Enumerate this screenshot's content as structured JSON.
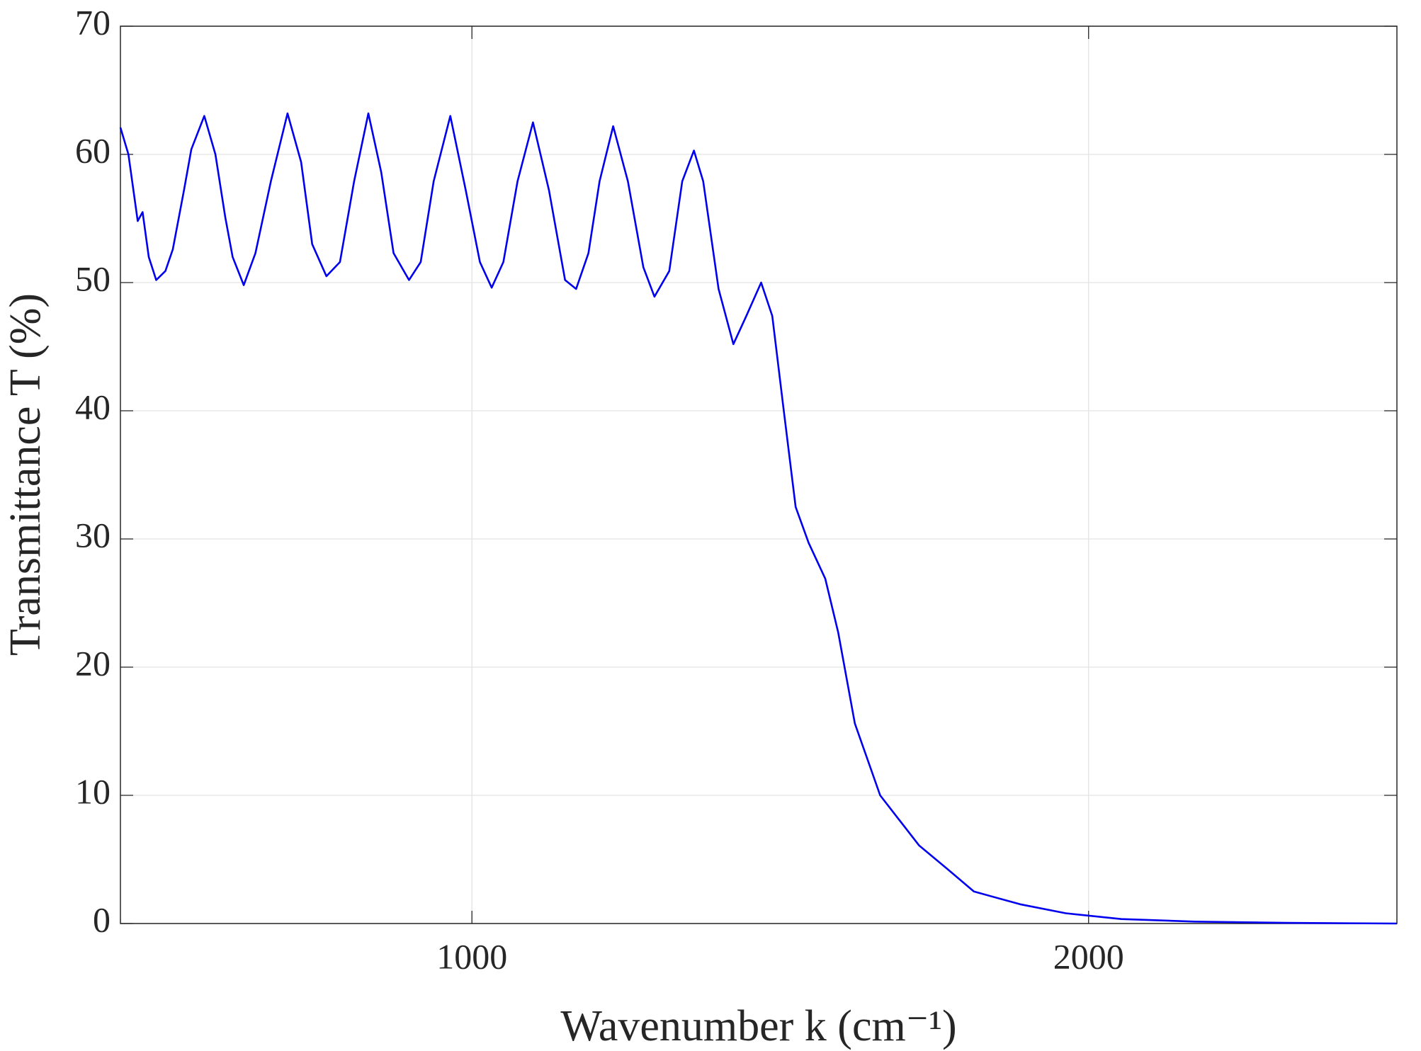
{
  "chart_data": {
    "type": "line",
    "xlabel": "Wavenumber k (cm⁻¹)",
    "ylabel": "Transmittance T (%)",
    "xlim": [
      430,
      2500
    ],
    "ylim": [
      0,
      70
    ],
    "xticks": [
      1000,
      2000
    ],
    "yticks": [
      0,
      10,
      20,
      30,
      40,
      50,
      60,
      70
    ],
    "grid": true,
    "series": [
      {
        "color": "#0000ee",
        "x": [
          430,
          443,
          458,
          466,
          476,
          488,
          503,
          515,
          533,
          545,
          566,
          584,
          600,
          612,
          630,
          649,
          674,
          701,
          723,
          741,
          764,
          786,
          809,
          832,
          853,
          873,
          898,
          917,
          938,
          965,
          990,
          1013,
          1032,
          1051,
          1074,
          1099,
          1125,
          1151,
          1169,
          1189,
          1207,
          1229,
          1253,
          1278,
          1296,
          1320,
          1341,
          1360,
          1375,
          1400,
          1424,
          1445,
          1469,
          1487,
          1505,
          1525,
          1546,
          1573,
          1594,
          1621,
          1662,
          1725,
          1770,
          1814,
          1889,
          1963,
          2053,
          2172,
          2321,
          2500
        ],
        "values": [
          62.1,
          60,
          54.8,
          55.5,
          52,
          50.2,
          50.9,
          52.6,
          57.2,
          60.4,
          63.0,
          60,
          55.1,
          52,
          49.8,
          52.3,
          57.9,
          63.2,
          59.4,
          53,
          50.5,
          51.6,
          57.9,
          63.2,
          58.6,
          52.3,
          50.2,
          51.6,
          57.9,
          63.0,
          57.2,
          51.6,
          49.6,
          51.6,
          57.9,
          62.5,
          57.2,
          50.2,
          49.5,
          52.3,
          57.9,
          62.2,
          57.9,
          51.2,
          48.9,
          50.9,
          57.9,
          60.3,
          57.9,
          49.5,
          45.2,
          47.4,
          50.0,
          47.4,
          40.3,
          32.5,
          29.7,
          26.9,
          22.7,
          15.6,
          10.0,
          6.1,
          4.3,
          2.5,
          1.5,
          0.8,
          0.35,
          0.15,
          0.05,
          0.0
        ]
      }
    ]
  }
}
